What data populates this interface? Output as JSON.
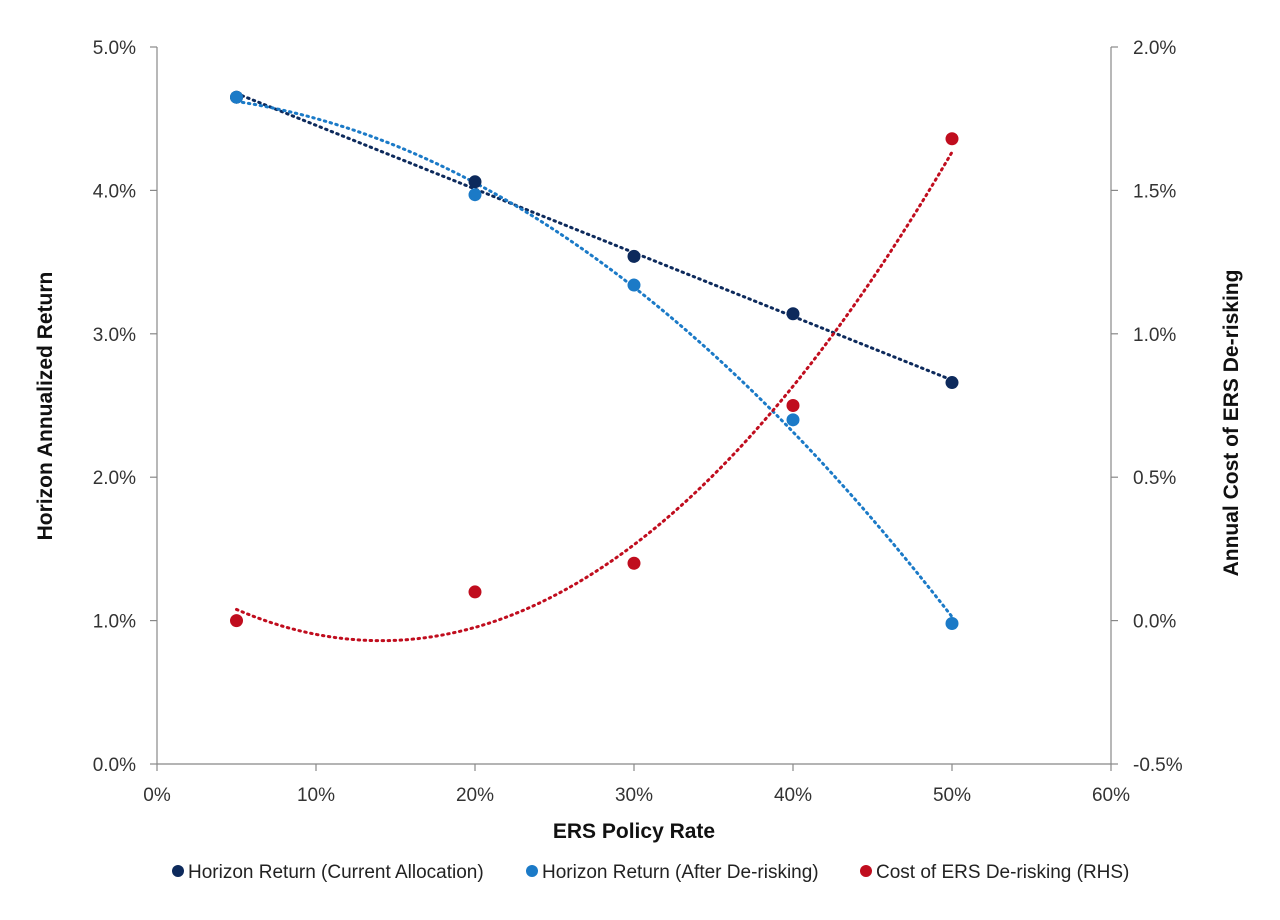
{
  "chart_data": {
    "type": "scatter",
    "xlabel": "ERS Policy Rate",
    "ylabel": "Horizon Annualized Return",
    "y2label": "Annual Cost of ERS De-risking",
    "xlim": [
      0,
      0.6
    ],
    "ylim": [
      0,
      0.05
    ],
    "y2lim": [
      -0.005,
      0.02
    ],
    "x_ticks": [
      0,
      0.1,
      0.2,
      0.3,
      0.4,
      0.5,
      0.6
    ],
    "x_tick_labels": [
      "0%",
      "10%",
      "20%",
      "30%",
      "40%",
      "50%",
      "60%"
    ],
    "y_ticks": [
      0,
      0.01,
      0.02,
      0.03,
      0.04,
      0.05
    ],
    "y_tick_labels": [
      "0.0%",
      "1.0%",
      "2.0%",
      "3.0%",
      "4.0%",
      "5.0%"
    ],
    "y2_ticks": [
      -0.005,
      0,
      0.005,
      0.01,
      0.015,
      0.02
    ],
    "y2_tick_labels": [
      "-0.5%",
      "0.0%",
      "0.5%",
      "1.0%",
      "1.5%",
      "2.0%"
    ],
    "grid": false,
    "legend_position": "bottom",
    "series": [
      {
        "name": "Horizon Return (Current Allocation)",
        "axis": "left",
        "color": "#0d2a5c",
        "trendline": "linear",
        "x": [
          0.05,
          0.2,
          0.3,
          0.4,
          0.5
        ],
        "y": [
          0.0465,
          0.0406,
          0.0354,
          0.0314,
          0.0266
        ]
      },
      {
        "name": "Horizon Return (After De-risking)",
        "axis": "left",
        "color": "#1b7ac7",
        "trendline": "polynomial-2",
        "x": [
          0.05,
          0.2,
          0.3,
          0.4,
          0.5
        ],
        "y": [
          0.0465,
          0.0397,
          0.0334,
          0.024,
          0.0098
        ]
      },
      {
        "name": "Cost of ERS De-risking (RHS)",
        "axis": "right",
        "color": "#c00d1e",
        "trendline": "polynomial-2",
        "x": [
          0.05,
          0.2,
          0.3,
          0.4,
          0.5
        ],
        "y": [
          0.0,
          0.001,
          0.002,
          0.0075,
          0.0168
        ]
      }
    ]
  }
}
